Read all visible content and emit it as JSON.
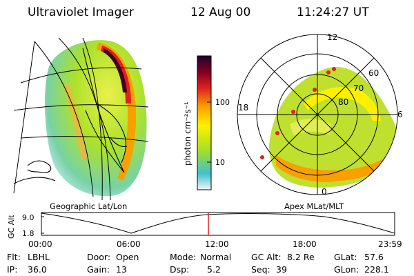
{
  "header": {
    "title": "Ultraviolet Imager",
    "date": "12 Aug 00",
    "time": "11:24:27 UT"
  },
  "colorbar": {
    "unit_label": "photon cm⁻²s⁻¹",
    "ticks": [
      "100",
      "10"
    ],
    "colors": [
      "#f5f5f5",
      "#40c0d0",
      "#a8e020",
      "#fff000",
      "#f8a000",
      "#e02020",
      "#800020",
      "#200030"
    ]
  },
  "geo_panel": {
    "caption": "Geographic Lat/Lon"
  },
  "polar_panel": {
    "caption": "Apex MLat/MLT",
    "mlt_labels": {
      "top": "12",
      "left": "18",
      "right": "6",
      "bottom": "0"
    },
    "lat_labels": [
      "60",
      "70",
      "80"
    ]
  },
  "timeline": {
    "ylabel": "GC Alt",
    "yticks": [
      "9.0",
      "1.8"
    ],
    "xticks": [
      "00:00",
      "06:00",
      "12:00",
      "18:00",
      "23:59"
    ],
    "cursor_time": "11:24"
  },
  "status": {
    "flt_label": "Flt:",
    "flt_value": "LBHL",
    "ip_label": "IP:",
    "ip_value": "36.0",
    "door_label": "Door:",
    "door_value": "Open",
    "gain_label": "Gain:",
    "gain_value": "13",
    "mode_label": "Mode:",
    "mode_value": "Normal",
    "dsp_label": "Dsp:",
    "dsp_value": "5.2",
    "gcalt_label": "GC Alt:",
    "gcalt_value": "8.2 Re",
    "seq_label": "Seq:",
    "seq_value": "39",
    "glat_label": "GLat:",
    "glat_value": "57.6",
    "glon_label": "GLon:",
    "glon_value": "228.1"
  }
}
